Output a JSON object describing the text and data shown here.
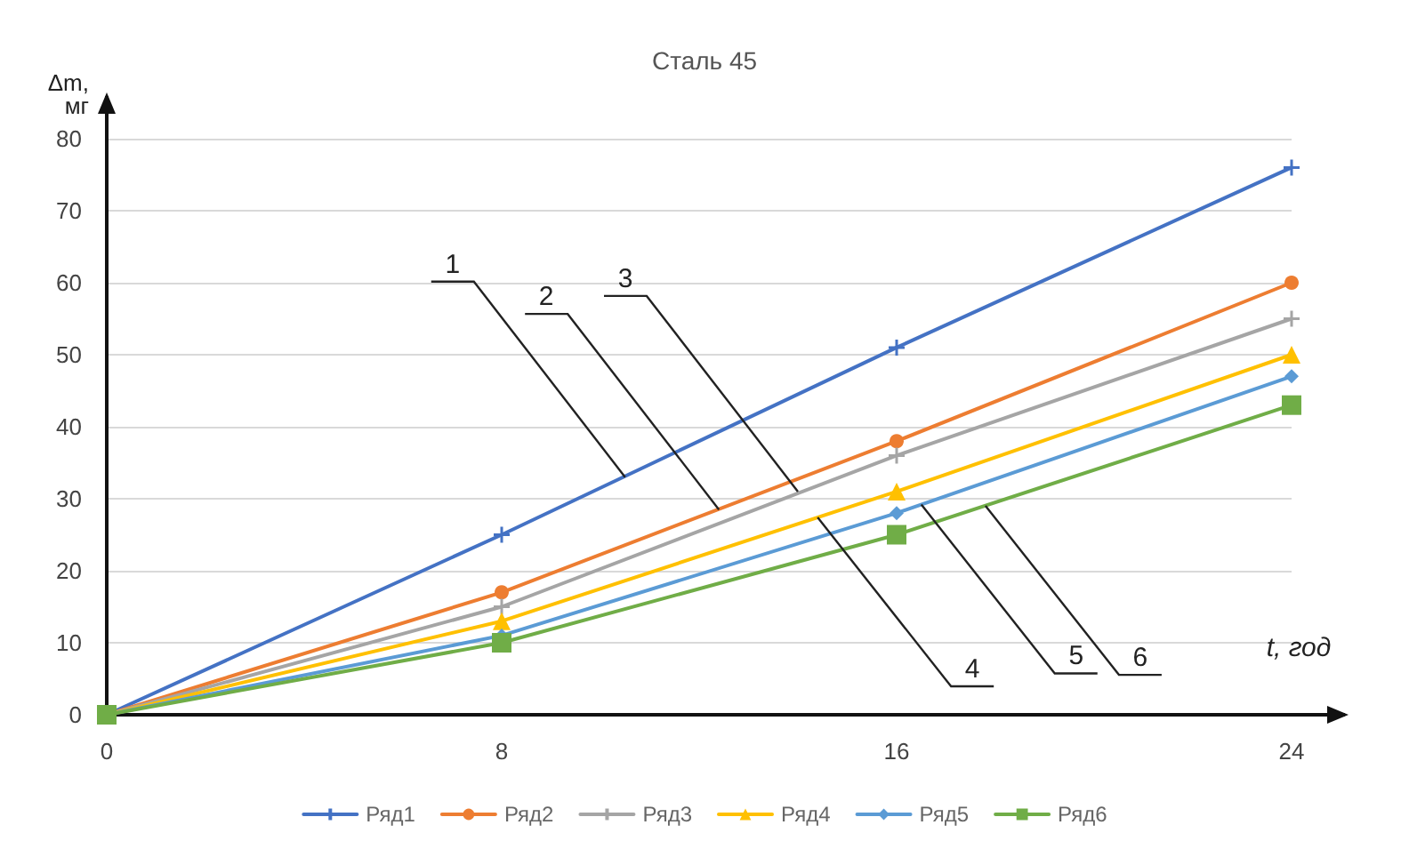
{
  "chart_data": {
    "type": "line",
    "title": "Сталь 45",
    "xlabel": "t, год",
    "ylabel": "Δm, мг",
    "x": [
      0,
      8,
      16,
      24
    ],
    "xlim": [
      0,
      24
    ],
    "xticks": [
      0,
      8,
      16,
      24
    ],
    "ylim": [
      0,
      80
    ],
    "yticks": [
      0,
      10,
      20,
      30,
      40,
      50,
      60,
      70,
      80
    ],
    "grid": "y",
    "legend": "bottom",
    "series": [
      {
        "name": "Ряд1",
        "color": "#4472c4",
        "marker": "cross",
        "values": [
          0,
          25,
          51,
          76
        ]
      },
      {
        "name": "Ряд2",
        "color": "#ed7d31",
        "marker": "circle",
        "values": [
          0,
          17,
          38,
          60
        ]
      },
      {
        "name": "Ряд3",
        "color": "#a5a5a5",
        "marker": "cross",
        "values": [
          0,
          15,
          36,
          55
        ]
      },
      {
        "name": "Ряд4",
        "color": "#ffc000",
        "marker": "triangle",
        "values": [
          0,
          13,
          31,
          50
        ]
      },
      {
        "name": "Ряд5",
        "color": "#5b9bd5",
        "marker": "diamond",
        "values": [
          0,
          11,
          28,
          47
        ]
      },
      {
        "name": "Ряд6",
        "color": "#70ad47",
        "marker": "square",
        "values": [
          0,
          10,
          25,
          43
        ]
      }
    ],
    "annotations": [
      {
        "text": "1",
        "x": 10.5,
        "y": 33
      },
      {
        "text": "2",
        "x": 12.4,
        "y": 28.5
      },
      {
        "text": "3",
        "x": 14,
        "y": 31
      },
      {
        "text": "4",
        "x": 14.4,
        "y": 27.4
      },
      {
        "text": "5",
        "x": 16.5,
        "y": 29.2
      },
      {
        "text": "6",
        "x": 17.8,
        "y": 29
      }
    ]
  }
}
